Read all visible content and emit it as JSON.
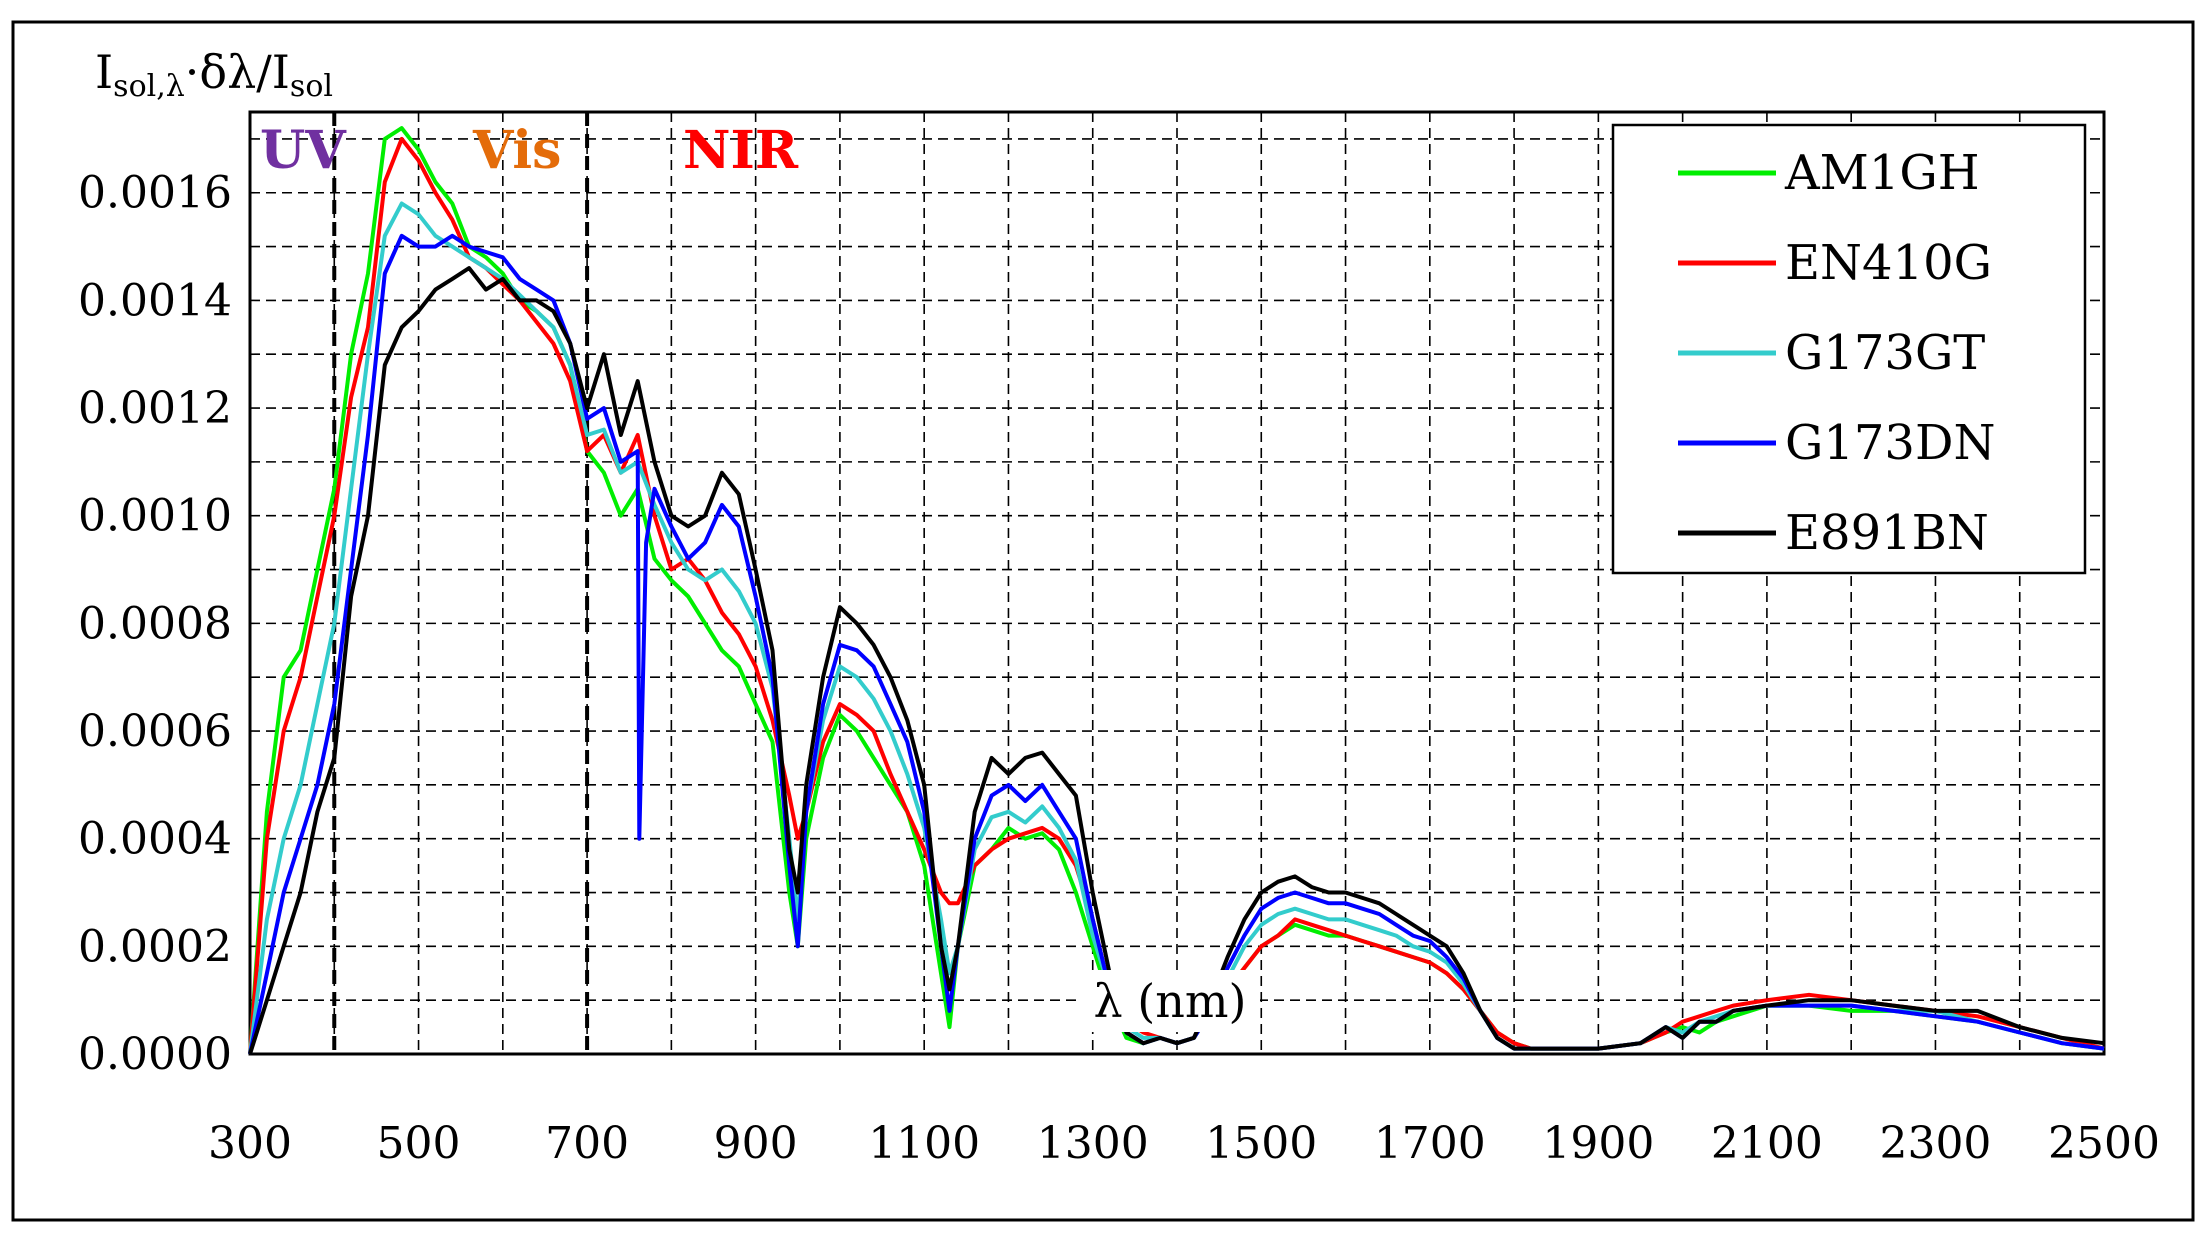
{
  "chart_data": {
    "type": "line",
    "ylabel": "I_sol,λ·δλ/I_sol",
    "ylabel_parts": {
      "main": "I",
      "sub1": "sol,λ",
      "mid": "·δλ/I",
      "sub2": "sol"
    },
    "xlabel": "λ (nm)",
    "xlim": [
      300,
      2500
    ],
    "ylim": [
      0,
      0.00175
    ],
    "x_ticks": [
      "300",
      "500",
      "700",
      "900",
      "1100",
      "1300",
      "1500",
      "1700",
      "1900",
      "2100",
      "2300",
      "2500"
    ],
    "y_ticks": [
      "0.0000",
      "0.0002",
      "0.0004",
      "0.0006",
      "0.0008",
      "0.0010",
      "0.0012",
      "0.0014",
      "0.0016"
    ],
    "grid": true,
    "legend_position": "top-right",
    "region_labels": [
      {
        "text": "UV",
        "color": "#7030a0"
      },
      {
        "text": "Vis",
        "color": "#e46c0a"
      },
      {
        "text": "NIR",
        "color": "#ff0000"
      }
    ],
    "region_boundaries_nm": [
      400,
      700
    ],
    "x_grid_step": 100,
    "y_grid_step": 0.0001,
    "series": [
      {
        "name": "AM1GH",
        "color": "#00ee00",
        "x": [
          300,
          320,
          340,
          360,
          380,
          400,
          420,
          440,
          460,
          480,
          500,
          520,
          540,
          560,
          580,
          600,
          620,
          640,
          660,
          680,
          700,
          720,
          740,
          760,
          780,
          800,
          820,
          840,
          860,
          880,
          900,
          920,
          940,
          950,
          960,
          980,
          1000,
          1020,
          1040,
          1060,
          1080,
          1100,
          1120,
          1130,
          1140,
          1160,
          1180,
          1200,
          1220,
          1240,
          1260,
          1280,
          1300,
          1320,
          1340,
          1360,
          1380,
          1400,
          1420,
          1440,
          1460,
          1480,
          1500,
          1520,
          1540,
          1560,
          1580,
          1600,
          1620,
          1640,
          1660,
          1680,
          1700,
          1720,
          1740,
          1760,
          1780,
          1800,
          1820,
          1850,
          1900,
          1950,
          1980,
          2000,
          2020,
          2040,
          2060,
          2100,
          2150,
          2200,
          2250,
          2300,
          2350,
          2400,
          2450,
          2500
        ],
        "y": [
          0.0,
          0.00045,
          0.0007,
          0.00075,
          0.0009,
          0.00105,
          0.0013,
          0.00145,
          0.0017,
          0.00172,
          0.00168,
          0.00162,
          0.00158,
          0.0015,
          0.00148,
          0.00145,
          0.0014,
          0.00138,
          0.00135,
          0.00128,
          0.00112,
          0.00108,
          0.001,
          0.00105,
          0.00092,
          0.00088,
          0.00085,
          0.0008,
          0.00075,
          0.00072,
          0.00065,
          0.00058,
          0.0003,
          0.0002,
          0.0004,
          0.00055,
          0.00063,
          0.0006,
          0.00055,
          0.0005,
          0.00045,
          0.00035,
          0.00015,
          5e-05,
          0.0002,
          0.00035,
          0.00038,
          0.00042,
          0.0004,
          0.00041,
          0.00038,
          0.0003,
          0.0002,
          0.0001,
          3e-05,
          2e-05,
          3e-05,
          2e-05,
          3e-05,
          8e-05,
          0.00012,
          0.00016,
          0.0002,
          0.00022,
          0.00024,
          0.00023,
          0.00022,
          0.00022,
          0.00021,
          0.0002,
          0.00019,
          0.00018,
          0.00017,
          0.00015,
          0.00012,
          8e-05,
          4e-05,
          2e-05,
          1e-05,
          1e-05,
          1e-05,
          2e-05,
          4e-05,
          5e-05,
          4e-05,
          6e-05,
          7e-05,
          9e-05,
          9e-05,
          8e-05,
          8e-05,
          7e-05,
          6e-05,
          4e-05,
          2e-05,
          1e-05
        ]
      },
      {
        "name": "EN410G",
        "color": "#ff0000",
        "x": [
          300,
          320,
          340,
          360,
          380,
          400,
          420,
          440,
          460,
          480,
          500,
          520,
          540,
          560,
          580,
          600,
          620,
          640,
          660,
          680,
          700,
          720,
          740,
          760,
          780,
          800,
          820,
          840,
          860,
          880,
          900,
          920,
          940,
          950,
          960,
          980,
          1000,
          1020,
          1040,
          1060,
          1080,
          1100,
          1120,
          1130,
          1140,
          1160,
          1180,
          1200,
          1220,
          1240,
          1260,
          1280,
          1300,
          1320,
          1340,
          1360,
          1380,
          1400,
          1420,
          1440,
          1460,
          1480,
          1500,
          1520,
          1540,
          1560,
          1580,
          1600,
          1620,
          1640,
          1660,
          1680,
          1700,
          1720,
          1740,
          1760,
          1780,
          1800,
          1820,
          1850,
          1900,
          1950,
          1980,
          2000,
          2020,
          2040,
          2060,
          2100,
          2150,
          2200,
          2250,
          2300,
          2350,
          2400,
          2450,
          2500
        ],
        "y": [
          0.0,
          0.0004,
          0.0006,
          0.0007,
          0.00085,
          0.001,
          0.00122,
          0.00135,
          0.00162,
          0.0017,
          0.00166,
          0.0016,
          0.00155,
          0.00148,
          0.00146,
          0.00143,
          0.0014,
          0.00136,
          0.00132,
          0.00125,
          0.00112,
          0.00115,
          0.00108,
          0.00115,
          0.001,
          0.0009,
          0.00092,
          0.00088,
          0.00082,
          0.00078,
          0.00072,
          0.00062,
          0.00048,
          0.0004,
          0.00045,
          0.00058,
          0.00065,
          0.00063,
          0.0006,
          0.00052,
          0.00045,
          0.00038,
          0.0003,
          0.00028,
          0.00028,
          0.00035,
          0.00038,
          0.0004,
          0.00041,
          0.00042,
          0.0004,
          0.00035,
          0.00025,
          0.00012,
          6e-05,
          4e-05,
          3e-05,
          2e-05,
          3e-05,
          8e-05,
          0.00012,
          0.00016,
          0.0002,
          0.00022,
          0.00025,
          0.00024,
          0.00023,
          0.00022,
          0.00021,
          0.0002,
          0.00019,
          0.00018,
          0.00017,
          0.00015,
          0.00012,
          8e-05,
          4e-05,
          2e-05,
          1e-05,
          1e-05,
          1e-05,
          2e-05,
          4e-05,
          6e-05,
          7e-05,
          8e-05,
          9e-05,
          0.0001,
          0.00011,
          0.0001,
          9e-05,
          8e-05,
          7e-05,
          5e-05,
          3e-05,
          1e-05
        ]
      },
      {
        "name": "G173GT",
        "color": "#33cccc",
        "x": [
          300,
          320,
          340,
          360,
          380,
          400,
          420,
          440,
          460,
          480,
          500,
          520,
          540,
          560,
          580,
          600,
          620,
          640,
          660,
          680,
          700,
          720,
          740,
          760,
          780,
          800,
          820,
          840,
          860,
          880,
          900,
          920,
          940,
          950,
          960,
          980,
          1000,
          1020,
          1040,
          1060,
          1080,
          1100,
          1120,
          1130,
          1140,
          1160,
          1180,
          1200,
          1220,
          1240,
          1260,
          1280,
          1300,
          1320,
          1340,
          1360,
          1380,
          1400,
          1420,
          1440,
          1460,
          1480,
          1500,
          1520,
          1540,
          1560,
          1580,
          1600,
          1620,
          1640,
          1660,
          1680,
          1700,
          1720,
          1740,
          1760,
          1780,
          1800,
          1820,
          1850,
          1900,
          1950,
          1980,
          2000,
          2020,
          2040,
          2060,
          2100,
          2150,
          2200,
          2250,
          2300,
          2350,
          2400,
          2450,
          2500
        ],
        "y": [
          0.0,
          0.00025,
          0.0004,
          0.0005,
          0.00065,
          0.0008,
          0.00105,
          0.0013,
          0.00152,
          0.00158,
          0.00156,
          0.00152,
          0.0015,
          0.00148,
          0.00146,
          0.00144,
          0.00141,
          0.00138,
          0.00135,
          0.00128,
          0.00115,
          0.00116,
          0.00108,
          0.0011,
          0.00102,
          0.00095,
          0.0009,
          0.00088,
          0.0009,
          0.00086,
          0.0008,
          0.00068,
          0.0004,
          0.00025,
          0.00045,
          0.00062,
          0.00072,
          0.0007,
          0.00066,
          0.0006,
          0.00052,
          0.00042,
          0.00025,
          0.00015,
          0.0002,
          0.00038,
          0.00044,
          0.00045,
          0.00043,
          0.00046,
          0.00042,
          0.00036,
          0.00022,
          0.00012,
          5e-05,
          3e-05,
          3e-05,
          2e-05,
          3e-05,
          8e-05,
          0.00014,
          0.0002,
          0.00024,
          0.00026,
          0.00027,
          0.00026,
          0.00025,
          0.00025,
          0.00024,
          0.00023,
          0.00022,
          0.0002,
          0.00019,
          0.00017,
          0.00013,
          8e-05,
          3e-05,
          1e-05,
          1e-05,
          1e-05,
          1e-05,
          2e-05,
          5e-05,
          4e-05,
          6e-05,
          7e-05,
          8e-05,
          9e-05,
          9e-05,
          9e-05,
          8e-05,
          8e-05,
          6e-05,
          4e-05,
          2e-05,
          1e-05
        ]
      },
      {
        "name": "G173DN",
        "color": "#0000ff",
        "x": [
          300,
          320,
          340,
          360,
          380,
          400,
          420,
          440,
          460,
          480,
          500,
          520,
          540,
          560,
          580,
          600,
          620,
          640,
          660,
          680,
          700,
          720,
          740,
          760,
          762,
          770,
          780,
          800,
          820,
          840,
          860,
          880,
          900,
          920,
          940,
          950,
          960,
          980,
          1000,
          1020,
          1040,
          1060,
          1080,
          1100,
          1120,
          1130,
          1140,
          1160,
          1180,
          1200,
          1220,
          1240,
          1260,
          1280,
          1300,
          1320,
          1340,
          1360,
          1380,
          1400,
          1420,
          1440,
          1460,
          1480,
          1500,
          1520,
          1540,
          1560,
          1580,
          1600,
          1620,
          1640,
          1660,
          1680,
          1700,
          1720,
          1740,
          1760,
          1780,
          1800,
          1820,
          1850,
          1900,
          1950,
          1980,
          2000,
          2020,
          2040,
          2060,
          2100,
          2150,
          2200,
          2250,
          2300,
          2350,
          2400,
          2450,
          2500
        ],
        "y": [
          0.0,
          0.00015,
          0.0003,
          0.0004,
          0.0005,
          0.00065,
          0.0009,
          0.00115,
          0.00145,
          0.00152,
          0.0015,
          0.0015,
          0.00152,
          0.0015,
          0.00149,
          0.00148,
          0.00144,
          0.00142,
          0.0014,
          0.00132,
          0.00118,
          0.0012,
          0.0011,
          0.00112,
          0.0004,
          0.00095,
          0.00105,
          0.00098,
          0.00092,
          0.00095,
          0.00102,
          0.00098,
          0.00085,
          0.0007,
          0.00035,
          0.0002,
          0.00045,
          0.00065,
          0.00076,
          0.00075,
          0.00072,
          0.00065,
          0.00058,
          0.00045,
          0.0002,
          8e-05,
          0.0002,
          0.0004,
          0.00048,
          0.0005,
          0.00047,
          0.0005,
          0.00045,
          0.0004,
          0.00025,
          0.00012,
          4e-05,
          2e-05,
          3e-05,
          2e-05,
          3e-05,
          8e-05,
          0.00016,
          0.00022,
          0.00027,
          0.00029,
          0.0003,
          0.00029,
          0.00028,
          0.00028,
          0.00027,
          0.00026,
          0.00024,
          0.00022,
          0.00021,
          0.00018,
          0.00014,
          8e-05,
          3e-05,
          1e-05,
          1e-05,
          1e-05,
          1e-05,
          2e-05,
          5e-05,
          3e-05,
          6e-05,
          6e-05,
          8e-05,
          9e-05,
          9e-05,
          9e-05,
          8e-05,
          7e-05,
          6e-05,
          4e-05,
          2e-05,
          1e-05
        ]
      },
      {
        "name": "E891BN",
        "color": "#000000",
        "x": [
          300,
          320,
          340,
          360,
          380,
          400,
          420,
          440,
          460,
          480,
          500,
          520,
          540,
          560,
          580,
          600,
          620,
          640,
          660,
          680,
          700,
          720,
          740,
          760,
          780,
          800,
          820,
          840,
          860,
          880,
          900,
          920,
          940,
          950,
          960,
          980,
          1000,
          1020,
          1040,
          1060,
          1080,
          1100,
          1120,
          1130,
          1140,
          1160,
          1180,
          1200,
          1220,
          1240,
          1260,
          1280,
          1300,
          1320,
          1340,
          1360,
          1380,
          1400,
          1420,
          1440,
          1460,
          1480,
          1500,
          1520,
          1540,
          1560,
          1580,
          1600,
          1620,
          1640,
          1660,
          1680,
          1700,
          1720,
          1740,
          1760,
          1780,
          1800,
          1820,
          1850,
          1900,
          1950,
          1980,
          2000,
          2020,
          2040,
          2060,
          2100,
          2150,
          2200,
          2250,
          2300,
          2350,
          2400,
          2450,
          2500
        ],
        "y": [
          0.0,
          0.0001,
          0.0002,
          0.0003,
          0.00045,
          0.00055,
          0.00085,
          0.001,
          0.00128,
          0.00135,
          0.00138,
          0.00142,
          0.00144,
          0.00146,
          0.00142,
          0.00144,
          0.0014,
          0.0014,
          0.00138,
          0.00132,
          0.0012,
          0.0013,
          0.00115,
          0.00125,
          0.0011,
          0.001,
          0.00098,
          0.001,
          0.00108,
          0.00104,
          0.0009,
          0.00075,
          0.00038,
          0.0003,
          0.0005,
          0.0007,
          0.00083,
          0.0008,
          0.00076,
          0.0007,
          0.00062,
          0.0005,
          0.0002,
          0.00012,
          0.0002,
          0.00045,
          0.00055,
          0.00052,
          0.00055,
          0.00056,
          0.00052,
          0.00048,
          0.0003,
          0.00015,
          4e-05,
          2e-05,
          3e-05,
          2e-05,
          3e-05,
          0.0001,
          0.00018,
          0.00025,
          0.0003,
          0.00032,
          0.00033,
          0.00031,
          0.0003,
          0.0003,
          0.00029,
          0.00028,
          0.00026,
          0.00024,
          0.00022,
          0.0002,
          0.00015,
          8e-05,
          3e-05,
          1e-05,
          1e-05,
          1e-05,
          1e-05,
          2e-05,
          5e-05,
          3e-05,
          6e-05,
          6e-05,
          8e-05,
          9e-05,
          0.0001,
          0.0001,
          9e-05,
          8e-05,
          8e-05,
          5e-05,
          3e-05,
          2e-05
        ]
      }
    ]
  }
}
